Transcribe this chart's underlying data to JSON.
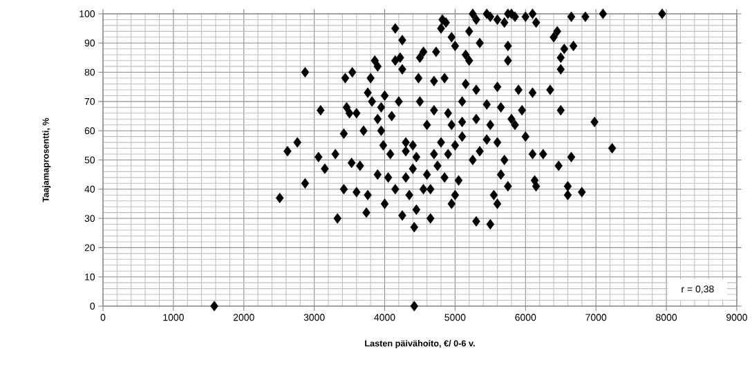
{
  "chart_data": {
    "type": "scatter",
    "xlabel": "Lasten päivähoito, €/ 0-6 v.",
    "ylabel": "Taajamaprosentti, %",
    "x": [
      1580,
      4420,
      2510,
      2620,
      2760,
      2870,
      2870,
      3090,
      3060,
      3150,
      3300,
      3330,
      3420,
      3420,
      3440,
      3460,
      3500,
      3540,
      3600,
      3530,
      3700,
      3740,
      3760,
      3800,
      3860,
      3900,
      3760,
      3820,
      3900,
      3950,
      3980,
      4000,
      3900,
      4050,
      4080,
      4150,
      4150,
      4220,
      4250,
      4200,
      4250,
      4300,
      4250,
      4350,
      4400,
      4420,
      4450,
      4500,
      4550,
      4500,
      4480,
      4600,
      4650,
      4650,
      4700,
      4700,
      4730,
      4800,
      4820,
      4870,
      4850,
      4950,
      5000,
      4950,
      5000,
      5050,
      5100,
      5100,
      5150,
      5150,
      5200,
      5200,
      5250,
      5300,
      5350,
      5450,
      5500,
      5600,
      5700,
      5750,
      5800,
      5850,
      6000,
      6100,
      6150,
      5300,
      5300,
      5250,
      5300,
      5500,
      5550,
      5600,
      5650,
      5700,
      5750,
      5800,
      5850,
      5900,
      5950,
      6000,
      6100,
      6100,
      6250,
      6350,
      6450,
      6400,
      6500,
      6550,
      6500,
      6500,
      6470,
      6600,
      6600,
      6650,
      6680,
      6650,
      6850,
      6800,
      6980,
      7100,
      7230,
      7940,
      6150,
      6130,
      5350,
      5450,
      5500,
      5600,
      5650,
      5750,
      4900,
      4950,
      4800,
      4750,
      4600,
      4400,
      4300,
      4150,
      3650,
      3600,
      4100,
      4000,
      3950,
      4300,
      4450,
      4900,
      5000,
      4850,
      4550,
      5450,
      5600,
      5750,
      5100,
      4700
    ],
    "values": [
      0,
      0,
      37,
      53,
      56,
      42,
      80,
      67,
      51,
      47,
      52,
      30,
      59,
      40,
      78,
      68,
      66,
      80,
      66,
      49,
      60,
      32,
      38,
      78,
      84,
      82,
      73,
      70,
      64,
      60,
      55,
      35,
      45,
      44,
      52,
      95,
      84,
      85,
      91,
      70,
      81,
      56,
      31,
      38,
      47,
      27,
      33,
      85,
      87,
      70,
      78,
      62,
      30,
      40,
      52,
      77,
      87,
      95,
      98,
      97,
      78,
      92,
      89,
      35,
      38,
      43,
      58,
      70,
      76,
      86,
      94,
      84,
      100,
      98,
      90,
      100,
      99,
      98,
      97,
      100,
      100,
      99,
      99,
      100,
      97,
      74,
      64,
      50,
      29,
      28,
      38,
      35,
      45,
      50,
      41,
      64,
      62,
      74,
      67,
      58,
      52,
      73,
      52,
      74,
      94,
      92,
      85,
      88,
      81,
      67,
      48,
      41,
      38,
      51,
      89,
      99,
      99,
      39,
      63,
      100,
      54,
      100,
      41,
      43,
      53,
      57,
      62,
      56,
      68,
      84,
      66,
      62,
      56,
      48,
      45,
      55,
      44,
      40,
      48,
      39,
      65,
      72,
      68,
      53,
      51,
      52,
      55,
      44,
      40,
      69,
      75,
      89,
      63,
      67
    ],
    "color": "#000000",
    "marker": "diamond",
    "xlim": [
      0,
      9000
    ],
    "ylim": [
      0,
      100
    ],
    "xticks": [
      0,
      1000,
      2000,
      3000,
      4000,
      5000,
      6000,
      7000,
      8000,
      9000
    ],
    "yticks": [
      0,
      10,
      20,
      30,
      40,
      50,
      60,
      70,
      80,
      90,
      100
    ],
    "grid": true,
    "annotations": [
      "r = 0,38"
    ]
  }
}
